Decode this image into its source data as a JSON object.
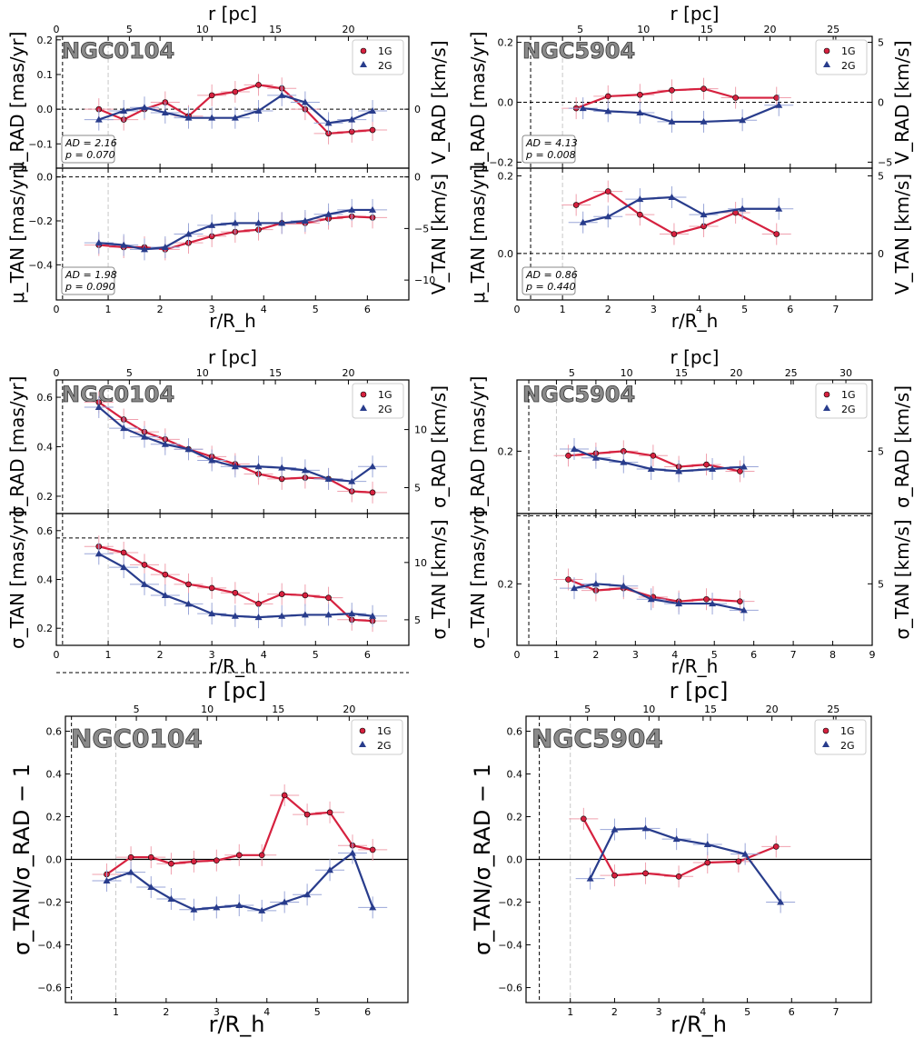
{
  "figure": {
    "colors": {
      "1G": "#d6213f",
      "2G": "#283c8c",
      "errorbar_1G": "#f0a0ae",
      "errorbar_2G": "#9aa6d8",
      "ref_line": "#c8c8c8"
    },
    "legend": {
      "1G": "1G",
      "2G": "2G",
      "position": "top-right"
    },
    "labels": {
      "r_pc": "r [pc]",
      "r_rh": "r/R_h",
      "mu_rad": "μ_RAD [mas/yr]",
      "mu_tan": "μ_TAN [mas/yr]",
      "v_rad": "V_RAD [km/s]",
      "v_tan": "V_TAN [km/s]",
      "sig_rad": "σ_RAD [mas/yr]",
      "sig_tan": "σ_TAN [mas/yr]",
      "sig_rad_kms": "σ_RAD [km/s]",
      "sig_tan_kms": "σ_TAN [km/s]",
      "ratio": "σ_TAN/σ_RAD − 1"
    }
  },
  "chart_data": [
    {
      "id": "ngc0104_mean_rad",
      "type": "line",
      "cluster": "NGC0104",
      "xlabel": "r/R_h",
      "ylabel": "μ_RAD [mas/yr]",
      "y2label": "V_RAD [km/s]",
      "xlim": [
        0,
        6.8
      ],
      "ylim": [
        -0.17,
        0.21
      ],
      "x_ticks": [
        1,
        2,
        3,
        4,
        5,
        6
      ],
      "y_ticks": [
        -0.2,
        -0.1,
        0.0,
        0.1,
        0.2
      ],
      "top_axis": {
        "label": "r [pc]",
        "ticks": [
          0,
          5,
          10,
          15,
          20
        ],
        "pc_per_unit": 3.55
      },
      "right_axis": {
        "ticks": [
          0,
          -5
        ],
        "kms_per_unit": 21.3
      },
      "zero_line": 0.0,
      "stats": {
        "AD": "AD = 2.16",
        "p": "p = 0.070"
      },
      "series": [
        {
          "name": "1G",
          "x": [
            0.82,
            1.3,
            1.7,
            2.1,
            2.55,
            3.0,
            3.45,
            3.9,
            4.35,
            4.8,
            5.25,
            5.7,
            6.1
          ],
          "y": [
            0.0,
            -0.03,
            0.0,
            0.02,
            -0.02,
            0.04,
            0.05,
            0.07,
            0.06,
            0.0,
            -0.07,
            -0.065,
            -0.06
          ]
        },
        {
          "name": "2G",
          "x": [
            0.82,
            1.3,
            1.7,
            2.1,
            2.55,
            3.0,
            3.45,
            3.9,
            4.35,
            4.8,
            5.25,
            5.7,
            6.1
          ],
          "y": [
            -0.03,
            -0.005,
            0.005,
            -0.01,
            -0.025,
            -0.025,
            -0.025,
            -0.005,
            0.04,
            0.02,
            -0.04,
            -0.03,
            -0.005
          ]
        }
      ]
    },
    {
      "id": "ngc0104_mean_tan",
      "type": "line",
      "cluster": "NGC0104",
      "xlabel": "r/R_h",
      "ylabel": "μ_TAN [mas/yr]",
      "y2label": "V_TAN [km/s]",
      "xlim": [
        0,
        6.8
      ],
      "ylim": [
        -0.56,
        0.04
      ],
      "x_ticks": [
        0,
        1,
        2,
        3,
        4,
        5,
        6
      ],
      "y_ticks": [
        -0.4,
        -0.2,
        0.0
      ],
      "right_axis": {
        "ticks": [
          0,
          -5,
          -10
        ],
        "kms_per_unit": 21.3
      },
      "zero_line": 0.0,
      "stats": {
        "AD": "AD = 1.98",
        "p": "p = 0.090"
      },
      "series": [
        {
          "name": "1G",
          "x": [
            0.82,
            1.3,
            1.7,
            2.1,
            2.55,
            3.0,
            3.45,
            3.9,
            4.35,
            4.8,
            5.25,
            5.7,
            6.1
          ],
          "y": [
            -0.31,
            -0.32,
            -0.32,
            -0.33,
            -0.3,
            -0.27,
            -0.25,
            -0.24,
            -0.21,
            -0.21,
            -0.19,
            -0.18,
            -0.185
          ]
        },
        {
          "name": "2G",
          "x": [
            0.82,
            1.3,
            1.7,
            2.1,
            2.55,
            3.0,
            3.45,
            3.9,
            4.35,
            4.8,
            5.25,
            5.7,
            6.1
          ],
          "y": [
            -0.3,
            -0.31,
            -0.33,
            -0.32,
            -0.26,
            -0.22,
            -0.21,
            -0.21,
            -0.21,
            -0.2,
            -0.17,
            -0.15,
            -0.15
          ]
        }
      ]
    },
    {
      "id": "ngc5904_mean_rad",
      "type": "line",
      "cluster": "NGC5904",
      "xlabel": "r/R_h",
      "ylabel": "μ_RAD [mas/yr]",
      "y2label": "V_RAD [km/s]",
      "xlim": [
        0,
        7.8
      ],
      "ylim": [
        -0.22,
        0.22
      ],
      "x_ticks": [
        1,
        2,
        3,
        4,
        5,
        6,
        7
      ],
      "y_ticks": [
        -0.2,
        0.0,
        0.2
      ],
      "top_axis": {
        "label": "r [pc]",
        "ticks": [
          5,
          10,
          15,
          20,
          25
        ],
        "pc_per_unit": 3.6
      },
      "right_axis": {
        "ticks": [
          5,
          0,
          -5
        ],
        "kms_per_unit": 25
      },
      "zero_line": 0.0,
      "stats": {
        "AD": "AD = 4.13",
        "p": "p = 0.008"
      },
      "series": [
        {
          "name": "1G",
          "x": [
            1.3,
            2.0,
            2.7,
            3.4,
            4.1,
            4.8,
            5.7
          ],
          "y": [
            -0.02,
            0.02,
            0.025,
            0.04,
            0.045,
            0.015,
            0.015
          ]
        },
        {
          "name": "2G",
          "x": [
            1.45,
            2.0,
            2.7,
            3.4,
            4.1,
            4.95,
            5.75
          ],
          "y": [
            -0.02,
            -0.03,
            -0.035,
            -0.065,
            -0.065,
            -0.06,
            -0.01
          ]
        }
      ]
    },
    {
      "id": "ngc5904_mean_tan",
      "type": "line",
      "cluster": "NGC5904",
      "xlabel": "r/R_h",
      "ylabel": "μ_TAN [mas/yr]",
      "y2label": "V_TAN [km/s]",
      "xlim": [
        0,
        7.8
      ],
      "ylim": [
        -0.12,
        0.22
      ],
      "x_ticks": [
        0,
        1,
        2,
        3,
        4,
        5,
        6,
        7
      ],
      "y_ticks": [
        0.0,
        0.2
      ],
      "right_axis": {
        "ticks": [
          5,
          0
        ],
        "kms_per_unit": 25
      },
      "zero_line": 0.0,
      "stats": {
        "AD": "AD = 0.86",
        "p": "p = 0.440"
      },
      "series": [
        {
          "name": "1G",
          "x": [
            1.3,
            2.0,
            2.7,
            3.45,
            4.1,
            4.8,
            5.7
          ],
          "y": [
            0.125,
            0.16,
            0.1,
            0.05,
            0.07,
            0.105,
            0.05
          ]
        },
        {
          "name": "2G",
          "x": [
            1.45,
            2.0,
            2.7,
            3.4,
            4.1,
            4.95,
            5.75
          ],
          "y": [
            0.08,
            0.095,
            0.14,
            0.145,
            0.1,
            0.115,
            0.115
          ]
        }
      ]
    },
    {
      "id": "ngc0104_disp_rad",
      "type": "line",
      "cluster": "NGC0104",
      "xlabel": "r/R_h",
      "ylabel": "σ_RAD [mas/yr]",
      "y2label": "σ_RAD [km/s]",
      "xlim": [
        0,
        6.8
      ],
      "ylim": [
        0.13,
        0.67
      ],
      "x_ticks": [
        1,
        2,
        3,
        4,
        5,
        6
      ],
      "y_ticks": [
        0.2,
        0.4,
        0.6
      ],
      "top_axis": {
        "label": "r [pc]",
        "ticks": [
          0,
          5,
          10,
          15,
          20
        ],
        "pc_per_unit": 3.55
      },
      "right_axis": {
        "ticks": [
          5,
          10
        ],
        "kms_per_unit": 21.3
      },
      "series": [
        {
          "name": "1G",
          "x": [
            0.82,
            1.3,
            1.7,
            2.1,
            2.55,
            3.0,
            3.45,
            3.9,
            4.35,
            4.8,
            5.25,
            5.7,
            6.1
          ],
          "y": [
            0.58,
            0.51,
            0.46,
            0.43,
            0.39,
            0.36,
            0.33,
            0.29,
            0.27,
            0.275,
            0.27,
            0.22,
            0.215
          ]
        },
        {
          "name": "2G",
          "x": [
            0.82,
            1.3,
            1.7,
            2.1,
            2.55,
            3.0,
            3.45,
            3.9,
            4.35,
            4.8,
            5.25,
            5.7,
            6.1
          ],
          "y": [
            0.56,
            0.475,
            0.44,
            0.41,
            0.39,
            0.345,
            0.32,
            0.32,
            0.315,
            0.305,
            0.27,
            0.26,
            0.32
          ]
        }
      ]
    },
    {
      "id": "ngc0104_disp_tan",
      "type": "line",
      "cluster": "NGC0104",
      "xlabel": "r/R_h",
      "ylabel": "σ_TAN [mas/yr]",
      "y2label": "σ_TAN [km/s]",
      "xlim": [
        0,
        6.8
      ],
      "ylim": [
        0.13,
        0.67
      ],
      "x_ticks": [
        0,
        1,
        2,
        3,
        4,
        5,
        6
      ],
      "y_ticks": [
        0.2,
        0.4,
        0.6
      ],
      "right_axis": {
        "ticks": [
          5,
          10
        ],
        "kms_per_unit": 21.3
      },
      "ref_line": 0.57,
      "series": [
        {
          "name": "1G",
          "x": [
            0.82,
            1.3,
            1.7,
            2.1,
            2.55,
            3.0,
            3.45,
            3.9,
            4.35,
            4.8,
            5.25,
            5.7,
            6.1
          ],
          "y": [
            0.535,
            0.51,
            0.46,
            0.42,
            0.38,
            0.365,
            0.345,
            0.3,
            0.34,
            0.335,
            0.325,
            0.235,
            0.23
          ]
        },
        {
          "name": "2G",
          "x": [
            0.82,
            1.3,
            1.7,
            2.1,
            2.55,
            3.0,
            3.45,
            3.9,
            4.35,
            4.8,
            5.25,
            5.7,
            6.1
          ],
          "y": [
            0.505,
            0.45,
            0.38,
            0.335,
            0.3,
            0.26,
            0.25,
            0.245,
            0.25,
            0.255,
            0.255,
            0.26,
            0.25
          ]
        }
      ]
    },
    {
      "id": "ngc5904_disp_rad",
      "type": "line",
      "cluster": "NGC5904",
      "xlabel": "r/R_h",
      "ylabel": "σ_RAD [mas/yr]",
      "y2label": "σ_RAD [km/s]",
      "xlim": [
        0,
        9
      ],
      "ylim": [
        0.06,
        0.36
      ],
      "x_ticks": [
        1,
        2,
        3,
        4,
        5,
        6,
        7,
        8,
        9
      ],
      "y_ticks": [
        0.2
      ],
      "top_axis": {
        "label": "r [pc]",
        "ticks": [
          5,
          10,
          15,
          20,
          25,
          30
        ],
        "pc_per_unit": 3.6
      },
      "right_axis": {
        "ticks": [
          5,
          10
        ],
        "kms_per_unit": 25
      },
      "series": [
        {
          "name": "1G",
          "x": [
            1.3,
            2.0,
            2.7,
            3.45,
            4.1,
            4.8,
            5.65
          ],
          "y": [
            0.19,
            0.195,
            0.2,
            0.19,
            0.165,
            0.17,
            0.155
          ]
        },
        {
          "name": "2G",
          "x": [
            1.45,
            2.0,
            2.7,
            3.4,
            4.1,
            4.95,
            5.75
          ],
          "y": [
            0.205,
            0.185,
            0.175,
            0.16,
            0.155,
            0.16,
            0.165
          ]
        }
      ]
    },
    {
      "id": "ngc5904_disp_tan",
      "type": "line",
      "cluster": "NGC5904",
      "xlabel": "r/R_h",
      "ylabel": "σ_TAN [mas/yr]",
      "y2label": "σ_TAN [km/s]",
      "xlim": [
        0,
        9
      ],
      "ylim": [
        0.06,
        0.36
      ],
      "x_ticks": [
        0,
        1,
        2,
        3,
        4,
        5,
        6,
        7,
        8,
        9
      ],
      "y_ticks": [
        0.2
      ],
      "right_axis": {
        "ticks": [
          5,
          10
        ],
        "kms_per_unit": 25
      },
      "ref_line": 0.355,
      "series": [
        {
          "name": "1G",
          "x": [
            1.3,
            2.0,
            2.7,
            3.45,
            4.1,
            4.8,
            5.65
          ],
          "y": [
            0.21,
            0.185,
            0.19,
            0.17,
            0.16,
            0.165,
            0.16
          ]
        },
        {
          "name": "2G",
          "x": [
            1.45,
            2.0,
            2.7,
            3.4,
            4.1,
            4.95,
            5.75
          ],
          "y": [
            0.19,
            0.2,
            0.195,
            0.165,
            0.155,
            0.155,
            0.14
          ]
        }
      ]
    },
    {
      "id": "ngc0104_anisotropy",
      "type": "line",
      "cluster": "NGC0104",
      "xlabel": "r/R_h",
      "ylabel": "σ_TAN/σ_RAD − 1",
      "xlim": [
        0,
        6.8
      ],
      "ylim": [
        -0.67,
        0.67
      ],
      "x_ticks": [
        1,
        2,
        3,
        4,
        5,
        6
      ],
      "y_ticks": [
        -0.6,
        -0.4,
        -0.2,
        0.0,
        0.2,
        0.4,
        0.6
      ],
      "top_axis": {
        "label": "r [pc]",
        "ticks": [
          5,
          10,
          15,
          20
        ],
        "pc_per_unit": 3.55
      },
      "zero_line": 0.0,
      "series": [
        {
          "name": "1G",
          "x": [
            0.82,
            1.3,
            1.7,
            2.1,
            2.55,
            3.0,
            3.45,
            3.9,
            4.35,
            4.8,
            5.25,
            5.7,
            6.1
          ],
          "y": [
            -0.07,
            0.01,
            0.01,
            -0.02,
            -0.01,
            -0.005,
            0.02,
            0.02,
            0.3,
            0.21,
            0.22,
            0.065,
            0.045
          ]
        },
        {
          "name": "2G",
          "x": [
            0.82,
            1.3,
            1.7,
            2.1,
            2.55,
            3.0,
            3.45,
            3.9,
            4.35,
            4.8,
            5.25,
            5.7,
            6.1
          ],
          "y": [
            -0.1,
            -0.06,
            -0.13,
            -0.185,
            -0.235,
            -0.225,
            -0.215,
            -0.24,
            -0.2,
            -0.165,
            -0.05,
            0.03,
            -0.225
          ]
        }
      ]
    },
    {
      "id": "ngc5904_anisotropy",
      "type": "line",
      "cluster": "NGC5904",
      "xlabel": "r/R_h",
      "ylabel": "σ_TAN/σ_RAD − 1",
      "xlim": [
        0,
        7.8
      ],
      "ylim": [
        -0.67,
        0.67
      ],
      "x_ticks": [
        1,
        2,
        3,
        4,
        5,
        6,
        7
      ],
      "y_ticks": [
        -0.6,
        -0.4,
        -0.2,
        0.0,
        0.2,
        0.4,
        0.6
      ],
      "top_axis": {
        "label": "r [pc]",
        "ticks": [
          5,
          10,
          15,
          20,
          25
        ],
        "pc_per_unit": 3.6
      },
      "zero_line": 0.0,
      "series": [
        {
          "name": "1G",
          "x": [
            1.3,
            2.0,
            2.7,
            3.45,
            4.1,
            4.8,
            5.65
          ],
          "y": [
            0.19,
            -0.075,
            -0.065,
            -0.08,
            -0.015,
            -0.01,
            0.06
          ]
        },
        {
          "name": "2G",
          "x": [
            1.45,
            2.0,
            2.7,
            3.4,
            4.1,
            4.95,
            5.75
          ],
          "y": [
            -0.09,
            0.14,
            0.145,
            0.095,
            0.07,
            0.025,
            -0.2
          ]
        }
      ]
    }
  ]
}
